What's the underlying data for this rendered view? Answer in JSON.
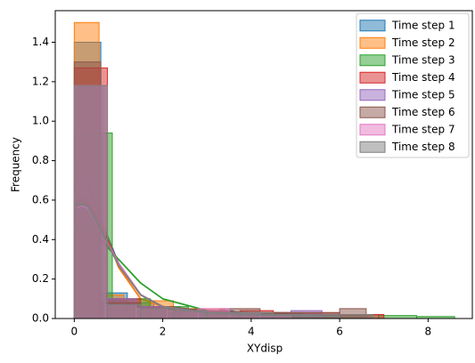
{
  "chart_data": {
    "type": "histogram",
    "x_label": "XYdisp",
    "y_label": "Frequency",
    "xlim": [
      -0.43,
      9.0
    ],
    "ylim": [
      0,
      1.56
    ],
    "xticks": [
      0,
      2,
      4,
      6,
      8
    ],
    "yticks": [
      {
        "value": 0,
        "label": "0.0"
      },
      {
        "value": 0.2,
        "label": "0.2"
      },
      {
        "value": 0.4,
        "label": "0.4"
      },
      {
        "value": 0.6,
        "label": "0.6"
      },
      {
        "value": 0.8,
        "label": "0.8"
      },
      {
        "value": 1.0,
        "label": "1.0"
      },
      {
        "value": 1.2,
        "label": "1.2"
      },
      {
        "value": 1.4,
        "label": "1.4"
      }
    ],
    "legend": "upper right",
    "series": [
      {
        "name": "Time step 1",
        "color": "#1f77b4",
        "bins": [
          0,
          0.6,
          1.2,
          1.8,
          2.4,
          3.6,
          4.8,
          6.0
        ],
        "values": [
          1.4,
          0.13,
          0.08,
          0.06,
          0.04,
          0.03,
          0.02
        ],
        "kde_x": [
          0.05,
          0.15,
          0.3,
          0.6,
          1.0,
          1.5,
          2.0,
          3.0,
          4.0,
          6.0
        ],
        "kde_y": [
          0.7,
          0.72,
          0.68,
          0.5,
          0.28,
          0.12,
          0.06,
          0.03,
          0.02,
          0.01
        ]
      },
      {
        "name": "Time step 2",
        "color": "#ff7f0e",
        "bins": [
          0,
          0.56,
          1.12,
          1.68,
          2.24,
          3.4,
          4.5,
          5.6,
          6.7
        ],
        "values": [
          1.5,
          0.12,
          0.1,
          0.09,
          0.05,
          0.03,
          0.03,
          0.02
        ],
        "kde_x": [
          0.05,
          0.15,
          0.3,
          0.6,
          1.0,
          1.5,
          2.0,
          3.0,
          4.0,
          6.0
        ],
        "kde_y": [
          0.76,
          0.78,
          0.72,
          0.5,
          0.26,
          0.1,
          0.06,
          0.03,
          0.02,
          0.01
        ]
      },
      {
        "name": "Time step 3",
        "color": "#2ca02c",
        "bins": [
          0,
          0.86,
          1.72,
          2.58,
          3.44,
          4.3,
          5.16,
          6.02,
          6.88,
          7.74,
          8.6
        ],
        "values": [
          0.94,
          0.1,
          0.06,
          0.04,
          0.03,
          0.03,
          0.02,
          0.02,
          0.015,
          0.01
        ],
        "kde_x": [
          0.05,
          0.15,
          0.3,
          0.6,
          1.0,
          1.5,
          2.0,
          3.0,
          4.0,
          6.0
        ],
        "kde_y": [
          0.45,
          0.47,
          0.46,
          0.4,
          0.3,
          0.18,
          0.1,
          0.04,
          0.02,
          0.01
        ]
      },
      {
        "name": "Time step 4",
        "color": "#d62728",
        "bins": [
          0,
          0.75,
          1.5,
          2.25,
          3.0,
          3.75,
          4.5,
          5.25,
          6.0,
          7.0
        ],
        "values": [
          1.27,
          0.1,
          0.06,
          0.04,
          0.03,
          0.04,
          0.03,
          0.03,
          0.02
        ],
        "kde_x": [
          0.05,
          0.15,
          0.3,
          0.6,
          1.0,
          1.5,
          2.0,
          3.0,
          4.0,
          6.0
        ],
        "kde_y": [
          0.6,
          0.62,
          0.6,
          0.47,
          0.28,
          0.12,
          0.06,
          0.03,
          0.02,
          0.01
        ]
      },
      {
        "name": "Time step 5",
        "color": "#9467bd",
        "bins": [
          0,
          0.7,
          1.4,
          2.1,
          2.8,
          3.5,
          4.2,
          4.9,
          5.6
        ],
        "values": [
          1.18,
          0.1,
          0.06,
          0.04,
          0.03,
          0.03,
          0.03,
          0.04
        ],
        "kde_x": [
          0.05,
          0.15,
          0.3,
          0.6,
          1.0,
          1.5,
          2.0,
          3.0,
          4.0,
          6.0
        ],
        "kde_y": [
          0.55,
          0.56,
          0.55,
          0.45,
          0.28,
          0.12,
          0.06,
          0.03,
          0.02,
          0.01
        ]
      },
      {
        "name": "Time step 6",
        "color": "#8c564b",
        "bins": [
          0,
          0.6,
          1.5,
          2.4,
          3.3,
          4.2,
          5.1,
          6.0,
          6.6
        ],
        "values": [
          1.3,
          0.08,
          0.05,
          0.04,
          0.05,
          0.03,
          0.03,
          0.05
        ],
        "kde_x": [
          0.05,
          0.15,
          0.3,
          0.6,
          1.0,
          1.5,
          2.0,
          3.0,
          4.0,
          6.0
        ],
        "kde_y": [
          0.58,
          0.6,
          0.58,
          0.46,
          0.27,
          0.12,
          0.06,
          0.04,
          0.03,
          0.01
        ]
      },
      {
        "name": "Time step 7",
        "color": "#e377c2",
        "bins": [
          0,
          0.7,
          1.4,
          2.1,
          2.8,
          3.5,
          4.2,
          4.9
        ],
        "values": [
          1.18,
          0.07,
          0.05,
          0.04,
          0.05,
          0.03,
          0.02
        ],
        "kde_x": [
          0.05,
          0.15,
          0.3,
          0.6,
          1.0,
          1.5,
          2.0,
          3.0,
          4.0,
          6.0
        ],
        "kde_y": [
          0.56,
          0.57,
          0.56,
          0.45,
          0.28,
          0.12,
          0.06,
          0.03,
          0.02,
          0.01
        ]
      },
      {
        "name": "Time step 8",
        "color": "#7f7f7f",
        "bins": [
          0,
          0.75,
          1.5,
          2.25,
          3.0,
          3.75,
          4.5,
          5.25,
          6.0,
          6.75
        ],
        "values": [
          1.18,
          0.07,
          0.05,
          0.04,
          0.03,
          0.03,
          0.02,
          0.02,
          0.02
        ],
        "kde_x": [
          0.05,
          0.15,
          0.3,
          0.6,
          1.0,
          1.5,
          2.0,
          3.0,
          4.0,
          6.0
        ],
        "kde_y": [
          0.57,
          0.58,
          0.57,
          0.45,
          0.27,
          0.12,
          0.06,
          0.03,
          0.02,
          0.01
        ]
      }
    ]
  }
}
